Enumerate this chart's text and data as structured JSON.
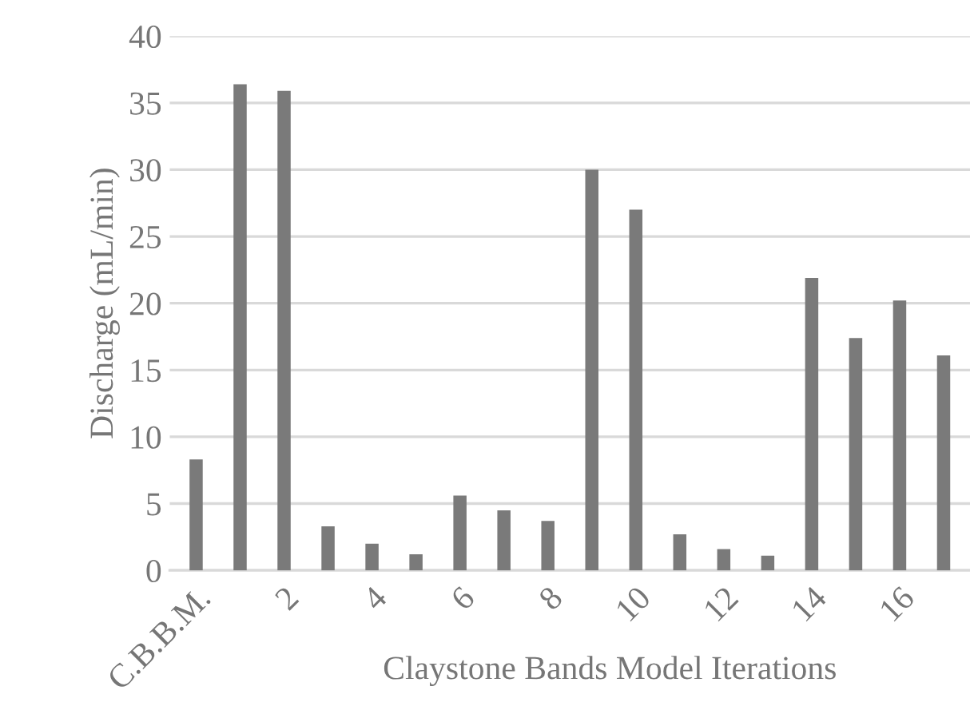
{
  "chart_data": {
    "type": "bar",
    "xlabel": "Claystone Bands Model Iterations",
    "ylabel": "Discharge (mL/min)",
    "categories": [
      "C.B.B.M.",
      null,
      "2",
      null,
      "4",
      null,
      "6",
      null,
      "8",
      null,
      "10",
      null,
      "12",
      null,
      "14",
      null,
      "16",
      null
    ],
    "values": [
      8.3,
      36.4,
      35.9,
      3.3,
      2.0,
      1.2,
      5.6,
      4.5,
      3.7,
      30.0,
      27.0,
      2.7,
      1.6,
      1.1,
      21.9,
      17.4,
      20.2,
      16.1
    ],
    "color": "#7a7a7a",
    "ylim": [
      0,
      40
    ],
    "yticks": [
      0,
      5,
      10,
      15,
      20,
      25,
      30,
      35,
      40
    ],
    "grid": "y",
    "legend": false
  }
}
